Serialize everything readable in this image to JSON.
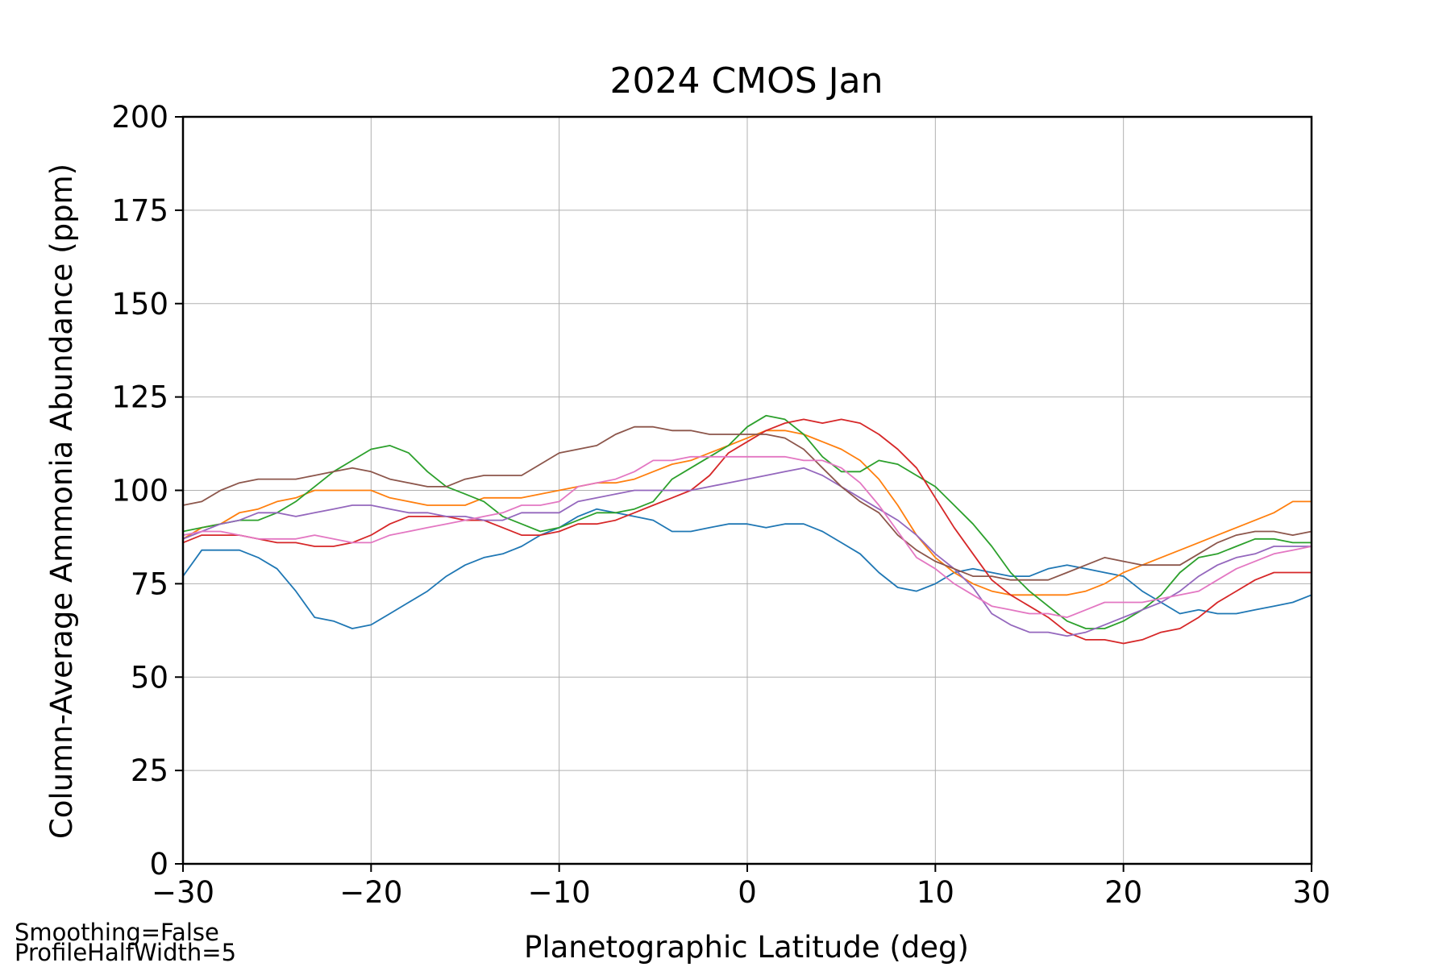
{
  "chart_data": {
    "type": "line",
    "title": "2024 CMOS Jan",
    "xlabel": "Planetographic Latitude (deg)",
    "ylabel": "Column-Average Ammonia Abundance (ppm)",
    "xlim": [
      -30,
      30
    ],
    "ylim": [
      0,
      200
    ],
    "xticks": [
      -30,
      -20,
      -10,
      0,
      10,
      20,
      30
    ],
    "xtick_labels": [
      "−30",
      "−20",
      "−10",
      "0",
      "10",
      "20",
      "30"
    ],
    "yticks": [
      0,
      25,
      50,
      75,
      100,
      125,
      150,
      175,
      200
    ],
    "ytick_labels": [
      "0",
      "25",
      "50",
      "75",
      "100",
      "125",
      "150",
      "175",
      "200"
    ],
    "grid": true,
    "x": [
      -30,
      -29,
      -28,
      -27,
      -26,
      -25,
      -24,
      -23,
      -22,
      -21,
      -20,
      -19,
      -18,
      -17,
      -16,
      -15,
      -14,
      -13,
      -12,
      -11,
      -10,
      -9,
      -8,
      -7,
      -6,
      -5,
      -4,
      -3,
      -2,
      -1,
      0,
      1,
      2,
      3,
      4,
      5,
      6,
      7,
      8,
      9,
      10,
      11,
      12,
      13,
      14,
      15,
      16,
      17,
      18,
      19,
      20,
      21,
      22,
      23,
      24,
      25,
      26,
      27,
      28,
      29,
      30
    ],
    "series": [
      {
        "color": "#1f77b4",
        "values": [
          77,
          84,
          84,
          84,
          82,
          79,
          73,
          66,
          65,
          63,
          64,
          67,
          70,
          73,
          77,
          80,
          82,
          83,
          85,
          88,
          90,
          93,
          95,
          94,
          93,
          92,
          89,
          89,
          90,
          91,
          91,
          90,
          91,
          91,
          89,
          86,
          83,
          78,
          74,
          73,
          75,
          78,
          79,
          78,
          77,
          77,
          79,
          80,
          79,
          78,
          77,
          73,
          70,
          67,
          68,
          67,
          67,
          68,
          69,
          70,
          72
        ]
      },
      {
        "color": "#ff7f0e",
        "values": [
          87,
          90,
          91,
          94,
          95,
          97,
          98,
          100,
          100,
          100,
          100,
          98,
          97,
          96,
          96,
          96,
          98,
          98,
          98,
          99,
          100,
          101,
          102,
          102,
          103,
          105,
          107,
          108,
          110,
          112,
          114,
          116,
          116,
          115,
          113,
          111,
          108,
          103,
          96,
          88,
          82,
          78,
          75,
          73,
          72,
          72,
          72,
          72,
          73,
          75,
          78,
          80,
          82,
          84,
          86,
          88,
          90,
          92,
          94,
          97,
          97
        ]
      },
      {
        "color": "#2ca02c",
        "values": [
          89,
          90,
          91,
          92,
          92,
          94,
          97,
          101,
          105,
          108,
          111,
          112,
          110,
          105,
          101,
          99,
          97,
          93,
          91,
          89,
          90,
          92,
          94,
          94,
          95,
          97,
          103,
          106,
          109,
          112,
          117,
          120,
          119,
          115,
          109,
          105,
          105,
          108,
          107,
          104,
          101,
          96,
          91,
          85,
          78,
          73,
          69,
          65,
          63,
          63,
          65,
          68,
          72,
          78,
          82,
          83,
          85,
          87,
          87,
          86,
          86
        ]
      },
      {
        "color": "#d62728",
        "values": [
          86,
          88,
          88,
          88,
          87,
          86,
          86,
          85,
          85,
          86,
          88,
          91,
          93,
          93,
          93,
          92,
          92,
          90,
          88,
          88,
          89,
          91,
          91,
          92,
          94,
          96,
          98,
          100,
          104,
          110,
          113,
          116,
          118,
          119,
          118,
          119,
          118,
          115,
          111,
          106,
          98,
          90,
          83,
          76,
          72,
          69,
          66,
          62,
          60,
          60,
          59,
          60,
          62,
          63,
          66,
          70,
          73,
          76,
          78,
          78,
          78
        ]
      },
      {
        "color": "#9467bd",
        "values": [
          87,
          89,
          91,
          92,
          94,
          94,
          93,
          94,
          95,
          96,
          96,
          95,
          94,
          94,
          93,
          93,
          92,
          92,
          94,
          94,
          94,
          97,
          98,
          99,
          100,
          100,
          100,
          100,
          101,
          102,
          103,
          104,
          105,
          106,
          104,
          101,
          98,
          95,
          92,
          88,
          83,
          79,
          74,
          67,
          64,
          62,
          62,
          61,
          62,
          64,
          66,
          68,
          70,
          73,
          77,
          80,
          82,
          83,
          85,
          85,
          85
        ]
      },
      {
        "color": "#8c564b",
        "values": [
          96,
          97,
          100,
          102,
          103,
          103,
          103,
          104,
          105,
          106,
          105,
          103,
          102,
          101,
          101,
          103,
          104,
          104,
          104,
          107,
          110,
          111,
          112,
          115,
          117,
          117,
          116,
          116,
          115,
          115,
          115,
          115,
          114,
          111,
          106,
          101,
          97,
          94,
          88,
          84,
          81,
          79,
          77,
          77,
          76,
          76,
          76,
          78,
          80,
          82,
          81,
          80,
          80,
          80,
          83,
          86,
          88,
          89,
          89,
          88,
          89
        ]
      },
      {
        "color": "#e377c2",
        "values": [
          88,
          89,
          89,
          88,
          87,
          87,
          87,
          88,
          87,
          86,
          86,
          88,
          89,
          90,
          91,
          92,
          93,
          94,
          96,
          96,
          97,
          101,
          102,
          103,
          105,
          108,
          108,
          109,
          109,
          109,
          109,
          109,
          109,
          108,
          108,
          106,
          102,
          96,
          89,
          82,
          79,
          75,
          72,
          69,
          68,
          67,
          67,
          66,
          68,
          70,
          70,
          70,
          71,
          72,
          73,
          76,
          79,
          81,
          83,
          84,
          85
        ]
      }
    ]
  },
  "annotations": {
    "smoothing": "Smoothing=False",
    "profile_half_width": "ProfileHalfWidth=5"
  }
}
